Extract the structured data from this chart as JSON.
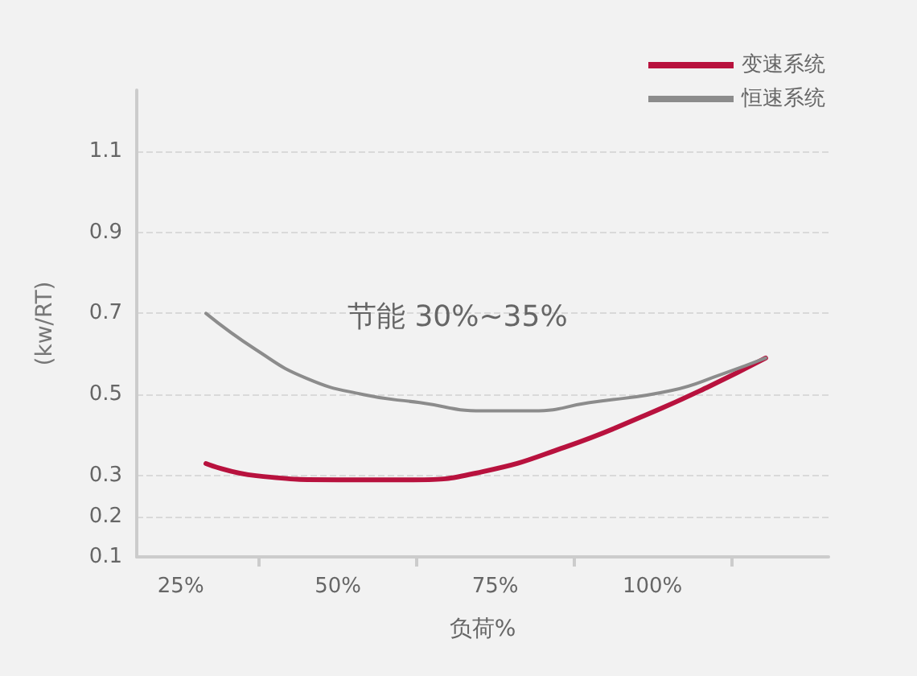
{
  "chart_data": {
    "type": "line",
    "xlabel": "负荷%",
    "ylabel": "(kw/RT)",
    "annotations": [
      "节能 30%~35%"
    ],
    "xlim": [
      18,
      128
    ],
    "xticks": [
      {
        "value": 25,
        "label": "25%"
      },
      {
        "value": 37.5,
        "label": null
      },
      {
        "value": 50,
        "label": "50%"
      },
      {
        "value": 62.5,
        "label": null
      },
      {
        "value": 75,
        "label": "75%"
      },
      {
        "value": 87.5,
        "label": null
      },
      {
        "value": 100,
        "label": "100%"
      },
      {
        "value": 112.5,
        "label": null
      }
    ],
    "ylim": [
      0.1,
      1.25
    ],
    "yticks": [
      0.1,
      0.2,
      0.3,
      0.5,
      0.7,
      0.9,
      1.1
    ],
    "grid": "y",
    "legend": "top right",
    "marker": "none",
    "series": [
      {
        "name": "变速系统",
        "color": "#b8123e",
        "x": [
          29,
          37,
          50,
          62,
          73,
          86,
          99,
          109,
          118
        ],
        "values": [
          0.33,
          0.3,
          0.29,
          0.29,
          0.31,
          0.37,
          0.45,
          0.52,
          0.59
        ]
      },
      {
        "name": "恒速系统",
        "color": "#8c8c8c",
        "x": [
          29,
          37,
          45,
          54,
          63,
          73,
          81,
          90,
          103,
          111,
          118
        ],
        "values": [
          0.7,
          0.61,
          0.54,
          0.5,
          0.48,
          0.46,
          0.46,
          0.48,
          0.51,
          0.55,
          0.59
        ]
      }
    ]
  }
}
